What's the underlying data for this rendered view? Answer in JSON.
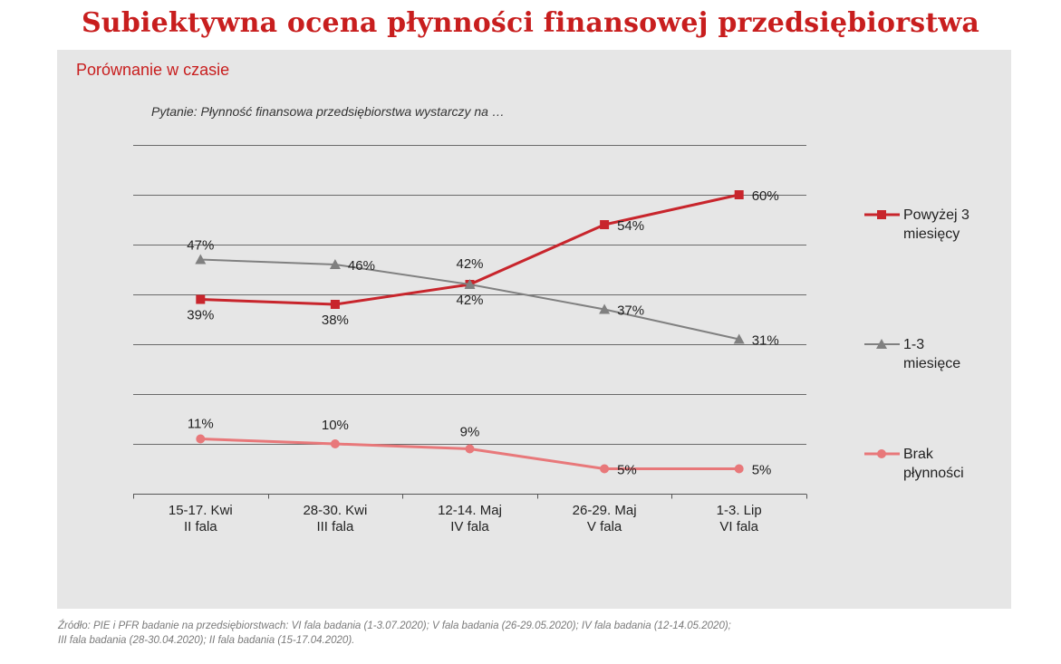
{
  "header": {
    "title": "Subiektywna ocena płynności finansowej przedsiębiorstwa"
  },
  "panel": {
    "subtitle": "Porównanie w czasie",
    "question": "Pytanie: Płynność finansowa przedsiębiorstwa wystarczy na …"
  },
  "chart_data": {
    "type": "line",
    "title": "",
    "xlabel": "",
    "ylabel": "",
    "categories": [
      [
        "15-17. Kwi",
        "II fala"
      ],
      [
        "28-30. Kwi",
        "III fala"
      ],
      [
        "12-14. Maj",
        "IV fala"
      ],
      [
        "26-29. Maj",
        "V fala"
      ],
      [
        "1-3. Lip",
        "VI fala"
      ]
    ],
    "ylim": [
      0,
      70
    ],
    "grid": true,
    "legend_position": "right",
    "series": [
      {
        "name": [
          "Powyżej 3",
          "miesięcy"
        ],
        "values": [
          39,
          38,
          42,
          54,
          60
        ],
        "labels": [
          "39%",
          "38%",
          "42%",
          "54%",
          "60%"
        ],
        "color": "#c8252c",
        "marker": "square"
      },
      {
        "name": [
          "1-3",
          "miesięce"
        ],
        "values": [
          47,
          46,
          42,
          37,
          31
        ],
        "labels": [
          "47%",
          "46%",
          "42%",
          "37%",
          "31%"
        ],
        "color": "#808080",
        "marker": "triangle"
      },
      {
        "name": [
          "Brak",
          "płynności"
        ],
        "values": [
          11,
          10,
          9,
          5,
          5
        ],
        "labels": [
          "11%",
          "10%",
          "9%",
          "5%",
          "5%"
        ],
        "color": "#e8787a",
        "marker": "circle"
      }
    ]
  },
  "footer": {
    "source_line1": "Źródło: PIE i PFR badanie na przedsiębiorstwach: VI fala badania (1-3.07.2020);  V fala badania (26-29.05.2020);  IV fala badania (12-14.05.2020);",
    "source_line2": "III fala badania (28-30.04.2020);  II fala badania (15-17.04.2020)."
  }
}
